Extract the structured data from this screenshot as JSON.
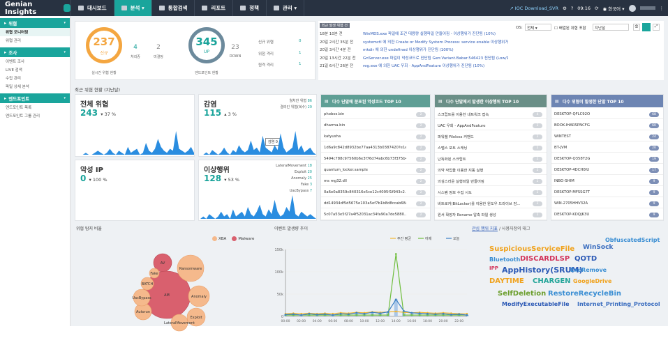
{
  "app": {
    "logo": "Genian Insights"
  },
  "nav": [
    {
      "label": "대시보드"
    },
    {
      "label": "분석 ▾"
    },
    {
      "label": "통합검색"
    },
    {
      "label": "리포트"
    },
    {
      "label": "정책"
    },
    {
      "label": "관리 ▾"
    }
  ],
  "topbar": {
    "ioc": "IOC Download_SVR",
    "time": "09:16",
    "lang": "한국어 ▾"
  },
  "sidebar": {
    "sections": [
      {
        "title": "위협",
        "items": [
          "위협 모니터링",
          "위협 관리"
        ]
      },
      {
        "title": "조사",
        "items": [
          "이벤트 조사",
          "LIVE 검색",
          "수집 관리",
          "파일 상세 분석"
        ]
      },
      {
        "title": "엔드포인트",
        "items": [
          "엔드포인트 목록",
          "엔드포인트 그룹 관리"
        ]
      }
    ]
  },
  "summary": {
    "threat": {
      "value": "237",
      "label": "신규",
      "caption": "실시간 위협 현황",
      "side": [
        {
          "num": "4",
          "label": "처리중"
        },
        {
          "num": "2",
          "label": "미결정"
        }
      ]
    },
    "endpoint": {
      "value": "345",
      "label": "UP",
      "caption": "엔드포인트 현황",
      "side": [
        {
          "num": "23",
          "label": "DOWN"
        }
      ]
    },
    "right": [
      {
        "label": "신규 위협",
        "value": "0"
      },
      {
        "label": "위험 격리",
        "value": "1"
      },
      {
        "label": "원격 격리",
        "value": "1"
      }
    ]
  },
  "controls": {
    "os_label": "OS:",
    "os_value": "전체",
    "check_label": "배열된 위협 포함",
    "period": "지난달"
  },
  "recent": {
    "title": "최근 발생 위협 건",
    "rows": [
      {
        "time": "18분 10분 전",
        "text": "WinMDS.exe 파일에 조건 대용량 실행파일 만들어짐 - 이상행위가 진단됨 (10%)"
      },
      {
        "time": "20일 2시간 35분 전",
        "text": "systemctl 에 의한 Create or Modify System Process: service enable 이상행위가 진단됨 (100%)"
      },
      {
        "time": "20일 3시간 4분 전",
        "text": "mkdir 에 의한 undefined 이상행위가 진단됨 (100%)"
      },
      {
        "time": "20일 13시간 22분 전",
        "text": "GnServer.exe 파일이 악성코드로 진단됨 Gen:Variant.Babar.546423 진단됨 (Low/100%)"
      },
      {
        "time": "21일 6시간 26분 전",
        "text": "reg.exe 에 의한 UAC 우회 · AppAndFeature 이상행위가 진단됨 (10%)"
      }
    ]
  },
  "section_title": "최근 위협 현황 (지난달)",
  "cards": [
    {
      "title": "전체 위협",
      "value": "243",
      "delta": "▾ 37 %",
      "spark": [
        0,
        0,
        0,
        1,
        0,
        0,
        1,
        2,
        1,
        0,
        1,
        3,
        1,
        0,
        2,
        1,
        0,
        4,
        1,
        2,
        3,
        0,
        1,
        6,
        2,
        1,
        3,
        8,
        4,
        2,
        1,
        3,
        2,
        12,
        3,
        2,
        1,
        2,
        4,
        1
      ]
    },
    {
      "title": "감염",
      "value": "115",
      "delta": "▴ 3 %",
      "extra": [
        {
          "label": "월치한 위협",
          "value": "86"
        },
        {
          "label": "결리킨 위협(복수)",
          "value": "29"
        }
      ],
      "tooltip": "감염 0",
      "spark": [
        0,
        0,
        1,
        0,
        2,
        1,
        0,
        1,
        3,
        1,
        0,
        2,
        1,
        4,
        2,
        1,
        2,
        6,
        2,
        3,
        1,
        8,
        3,
        2,
        1,
        4,
        2,
        9,
        3,
        1,
        2,
        3,
        10,
        2,
        4,
        1,
        2,
        3,
        1,
        0
      ]
    },
    {
      "title": "악성 IP",
      "value": "0",
      "delta": "▾ 100 %",
      "spark": [
        0,
        0,
        0,
        0,
        0,
        0,
        0,
        0,
        0,
        0,
        0,
        0,
        0,
        0,
        0,
        0,
        0,
        0,
        0,
        0,
        0,
        0,
        0,
        0,
        0,
        0,
        0,
        0,
        0,
        0,
        0,
        0,
        0,
        0,
        0,
        0,
        0,
        0,
        0,
        0
      ]
    },
    {
      "title": "이상행위",
      "value": "128",
      "delta": "▾ 53 %",
      "extra": [
        {
          "label": "LateralMovement",
          "value": "18"
        },
        {
          "label": "Exploit",
          "value": "20"
        },
        {
          "label": "Anomaly",
          "value": "25"
        },
        {
          "label": "Fake",
          "value": "3"
        },
        {
          "label": "UacBypass",
          "value": "7"
        }
      ],
      "spark": [
        0,
        1,
        0,
        2,
        1,
        0,
        1,
        3,
        1,
        2,
        0,
        4,
        1,
        2,
        3,
        1,
        5,
        2,
        1,
        3,
        6,
        2,
        1,
        4,
        2,
        8,
        3,
        1,
        2,
        5,
        3,
        10,
        2,
        1,
        3,
        2,
        1,
        2,
        1,
        0
      ]
    }
  ],
  "top_process": {
    "title": "다수 단말에 분포된 악성코드 TOP 10",
    "items": [
      "phobos.bin",
      "dharma.bin",
      "katyusha",
      "1d6a9c842d8932be77aa4313b0387420?e1e1c...",
      "5494c788c97560b6e3f76d74abc6b73f375b4...",
      "quantum_locker.sample",
      "ms mg32.dll",
      "0a6e0a8359c840316e5ce12c4095f1f943c2...",
      "dd14934df5d5675e103a5ef7b1b8d8ccab68a0...",
      "5c07a53e5f27a4f52031ac34fa90a7de5880...."
    ],
    "counts": [
      "2",
      "2",
      "2",
      "2",
      "2",
      "2",
      "2",
      "2",
      "2",
      "2"
    ]
  },
  "top_behavior": {
    "title": "다수 단말에서 발생한 이상행위 TOP 10",
    "items": [
      "스크립트를 이용한 내트워크 접속",
      "UAC 우회 - AppAndFeature",
      "파워쉘 Fileless 커맨드",
      "스맵스 포트 스캐닝",
      "난독화된 스크립트",
      "의약 작업을 이용한 지동 실행",
      "의심스러운 실행파일 만들어짐",
      "시스템 정보 수집 시도",
      "비트로커(BitLocker)를 이용한 윈도우 드라이브 잠...",
      "윈서 확장자 Rename 압축 파일 생성"
    ],
    "counts": [
      "4",
      "2",
      "2",
      "2",
      "2",
      "2",
      "2",
      "2",
      "2",
      "2"
    ]
  },
  "top_endpoint": {
    "title": "다수 위협이 발생한 단말 TOP 10",
    "items": [
      "DESKTOP-QFLC92O",
      "BOOK-IHARSPNCFG",
      "WINTEST",
      "BT-JVM",
      "DESKTOP-Q358T2G",
      "DESKTOP-4DCH0IU",
      "INBO-SHIM",
      "DESKTOP-MFSSG7T",
      "WIN-2705HHV32A",
      "DESKTOP-KDQJK3U"
    ],
    "counts": [
      "68",
      "60",
      "24",
      "20",
      "19",
      "17",
      "9",
      "9",
      "9",
      "9"
    ]
  },
  "bubble": {
    "title": "위협 탐지 비율",
    "legend": [
      {
        "label": "XBA",
        "color": "#f5b98c"
      },
      {
        "label": "Malware",
        "color": "#d9606e"
      }
    ],
    "bubbles": [
      {
        "label": "AV",
        "type": "Malware"
      },
      {
        "label": "AM",
        "type": "Malware"
      },
      {
        "label": "Ransomware",
        "type": "XBA"
      },
      {
        "label": "Anomaly",
        "type": "XBA"
      },
      {
        "label": "Exploit",
        "type": "XBA"
      },
      {
        "label": "LateralMovement",
        "type": "XBA"
      },
      {
        "label": "Autorun",
        "type": "XBA"
      },
      {
        "label": "UacBypass",
        "type": "XBA"
      },
      {
        "label": "BATCH",
        "type": "XBA"
      },
      {
        "label": "Fake",
        "type": "XBA"
      }
    ]
  },
  "chart_data": {
    "type": "line",
    "title": "이벤트 발생량 추이",
    "legend_position": "top-right",
    "x": [
      "00:00",
      "01:00",
      "02:00",
      "03:00",
      "04:00",
      "05:00",
      "06:00",
      "07:00",
      "08:00",
      "09:00",
      "10:00",
      "11:00",
      "12:00",
      "13:00",
      "14:00",
      "15:00",
      "16:00",
      "17:00",
      "18:00",
      "19:00",
      "20:00",
      "21:00",
      "22:00",
      "23:00"
    ],
    "ylim": [
      0,
      150000
    ],
    "yticks": [
      "0",
      "50k",
      "100k",
      "150k"
    ],
    "series": [
      {
        "name": "주간 평균",
        "color": "#f2b632",
        "values": [
          6000,
          7000,
          6000,
          7000,
          6000,
          7000,
          6000,
          8000,
          7000,
          9000,
          8000,
          10000,
          9000,
          10000,
          11000,
          9000,
          8000,
          9000,
          8000,
          7000,
          8000,
          7000,
          6000,
          6000
        ]
      },
      {
        "name": "어제",
        "color": "#6fbe3d",
        "values": [
          3000,
          3000,
          3000,
          3000,
          3000,
          3000,
          3000,
          3000,
          3000,
          3000,
          3000,
          3000,
          3000,
          3000,
          140000,
          3000,
          3000,
          3000,
          3000,
          3000,
          3000,
          3000,
          3000,
          3000
        ]
      },
      {
        "name": "오늘",
        "color": "#3a7fc4",
        "values": [
          4000,
          5000,
          3000,
          6000,
          4000,
          5000,
          3000,
          6000,
          5000,
          8000,
          6000,
          9000,
          7000,
          10000,
          38000,
          12000,
          8000,
          7000,
          6000,
          5000,
          6000,
          4000,
          5000,
          3000
        ]
      }
    ]
  },
  "tags": {
    "tab_active": "관심 행위 지표",
    "tab_other": "/ 사용자정의 태그",
    "words": [
      {
        "t": "SuspiciousServiceFile",
        "c": "#f0a21c",
        "s": 10
      },
      {
        "t": "WinSock",
        "c": "#3a6dbf",
        "s": 9
      },
      {
        "t": "ObfuscatedScript",
        "c": "#3a8ed3",
        "s": 8
      },
      {
        "t": "Bluetooth",
        "c": "#3a8ed3",
        "s": 8
      },
      {
        "t": "DISCARDLSP",
        "c": "#d2345a",
        "s": 10
      },
      {
        "t": "QOTD",
        "c": "#2b59b5",
        "s": 10
      },
      {
        "t": "IPP",
        "c": "#d2345a",
        "s": 7
      },
      {
        "t": "AppHistory(SRUM)",
        "c": "#2b59b5",
        "s": 11
      },
      {
        "t": "ExeRemove",
        "c": "#3a8ed3",
        "s": 8
      },
      {
        "t": "DAYTIME",
        "c": "#f0a21c",
        "s": 10
      },
      {
        "t": "CHARGEN",
        "c": "#26a69a",
        "s": 10
      },
      {
        "t": "GoogleDrive",
        "c": "#f0a21c",
        "s": 8
      },
      {
        "t": "SelfDeletion",
        "c": "#6b9e2c",
        "s": 10
      },
      {
        "t": "RestoreRecycleBin",
        "c": "#3a8ed3",
        "s": 10
      },
      {
        "t": "ModifyExecutableFile",
        "c": "#2b59b5",
        "s": 8
      },
      {
        "t": "Internet_Printing_Protocol",
        "c": "#3a6dbf",
        "s": 8
      }
    ]
  }
}
